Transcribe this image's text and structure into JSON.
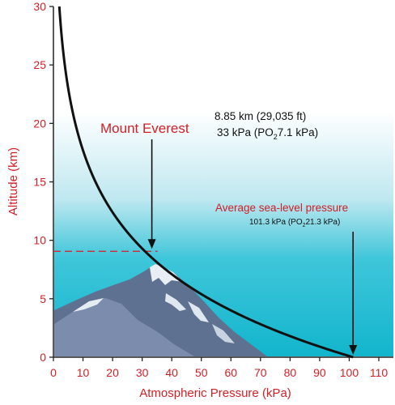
{
  "chart_data": {
    "type": "line",
    "title": "",
    "xlabel": "Atmospheric Pressure (kPa)",
    "ylabel": "Altitude (km)",
    "xlim": [
      0,
      115
    ],
    "ylim": [
      0,
      30
    ],
    "xticks": [
      0,
      10,
      20,
      30,
      40,
      50,
      60,
      70,
      80,
      90,
      100,
      110
    ],
    "yticks": [
      0,
      5,
      10,
      15,
      20,
      25,
      30
    ],
    "grid": false,
    "scale_height_km": 7.64,
    "sea_level_pressure_kpa": 101.3,
    "series": [
      {
        "x": [
          101.3,
          89.0,
          79.0,
          70.0,
          61.5,
          54.0,
          47.0,
          41.0,
          36.0,
          33.0,
          26.0,
          20.0,
          15.0,
          10.0,
          7.0,
          5.0,
          3.3,
          2.5
        ],
        "y": [
          0,
          1,
          2,
          3,
          4,
          5,
          6,
          7,
          8,
          8.85,
          10.5,
          12.5,
          14.7,
          17.8,
          20.5,
          23.1,
          26.2,
          28.3
        ],
        "color": "#111111"
      }
    ],
    "annotations": {
      "everest_label": "Mount Everest",
      "everest_line1": "8.85 km (29,035 ft)",
      "everest_line2_prefix": "33 kPa (PO",
      "everest_line2_sub": "2",
      "everest_line2_suffix": "7.1 kPa)",
      "sea_label": "Average sea-level pressure",
      "sea_line_prefix": "101.3 kPa (PO",
      "sea_line_sub": "2",
      "sea_line_suffix": "21.3 kPa)",
      "everest_point": [
        33,
        8.85
      ],
      "sea_point": [
        101.3,
        0
      ]
    },
    "colors": {
      "label_red": "#d21f26",
      "curve": "#111111",
      "sky_top": "#ffffff",
      "sky_bottom": "#14b9d0",
      "mountain_dark": "#5d6f8e",
      "mountain_mid": "#7a8bab",
      "snow": "#eef3f8"
    }
  }
}
